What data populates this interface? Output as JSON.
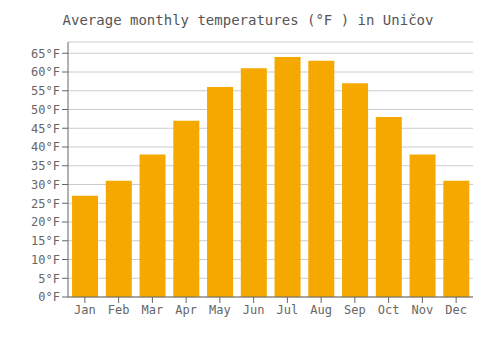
{
  "chart_data": {
    "type": "bar",
    "title": "Average monthly temperatures (°F ) in Uničov",
    "categories": [
      "Jan",
      "Feb",
      "Mar",
      "Apr",
      "May",
      "Jun",
      "Jul",
      "Aug",
      "Sep",
      "Oct",
      "Nov",
      "Dec"
    ],
    "values": [
      27,
      31,
      38,
      47,
      56,
      61,
      64,
      63,
      57,
      48,
      38,
      31
    ],
    "color": "#F5A800",
    "ylim": [
      0,
      68
    ],
    "yticks": [
      {
        "value": 0,
        "label": "0°F"
      },
      {
        "value": 5,
        "label": "5°F"
      },
      {
        "value": 10,
        "label": "10°F"
      },
      {
        "value": 15,
        "label": "15°F"
      },
      {
        "value": 20,
        "label": "20°F"
      },
      {
        "value": 25,
        "label": "25°F"
      },
      {
        "value": 30,
        "label": "30°F"
      },
      {
        "value": 35,
        "label": "35°F"
      },
      {
        "value": 40,
        "label": "40°F"
      },
      {
        "value": 45,
        "label": "45°F"
      },
      {
        "value": 50,
        "label": "50°F"
      },
      {
        "value": 55,
        "label": "55°F"
      },
      {
        "value": 60,
        "label": "60°F"
      },
      {
        "value": 65,
        "label": "65°F"
      }
    ],
    "grid": true
  }
}
